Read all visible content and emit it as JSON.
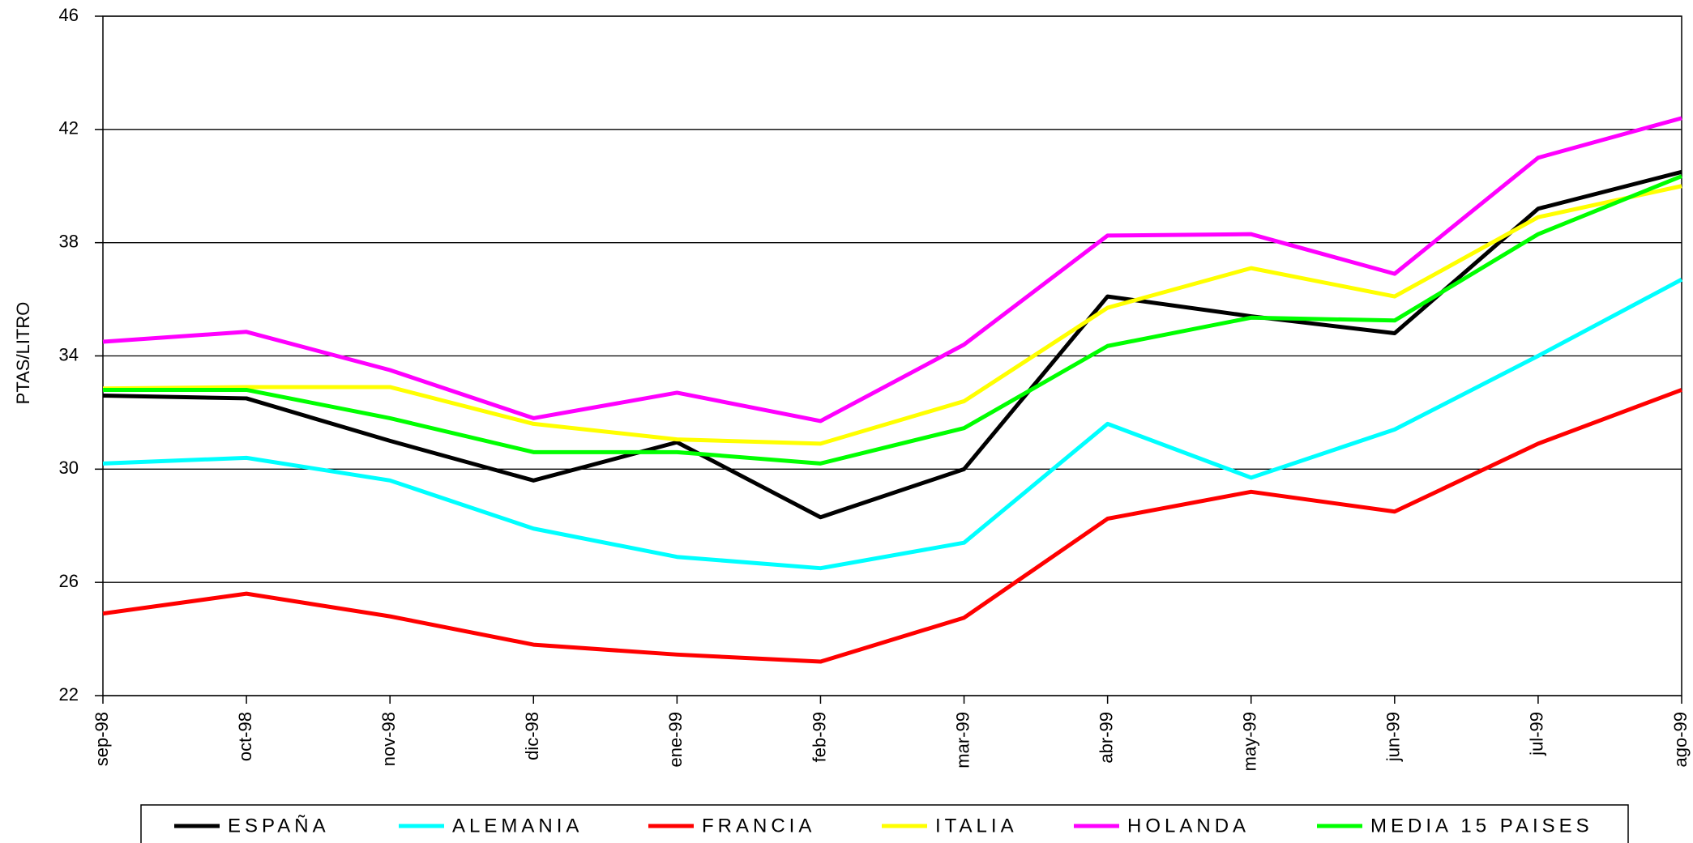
{
  "chart_data": {
    "type": "line",
    "y_label": "PTAS/LITRO",
    "categories": [
      "sep-98",
      "oct-98",
      "nov-98",
      "dic-98",
      "ene-99",
      "feb-99",
      "mar-99",
      "abr-99",
      "may-99",
      "jun-99",
      "jul-99",
      "ago-99"
    ],
    "series": [
      {
        "name": "ESPAÑA",
        "color": "#000000",
        "values": [
          32.6,
          32.5,
          31.0,
          29.6,
          30.95,
          28.3,
          30.0,
          36.1,
          35.4,
          34.8,
          39.2,
          40.5
        ]
      },
      {
        "name": "ALEMANIA",
        "color": "#00ffff",
        "values": [
          30.2,
          30.4,
          29.6,
          27.9,
          26.9,
          26.5,
          27.4,
          31.6,
          29.7,
          31.4,
          34.0,
          36.7
        ]
      },
      {
        "name": "FRANCIA",
        "color": "#ff0000",
        "values": [
          24.9,
          25.6,
          24.8,
          23.8,
          23.45,
          23.2,
          24.75,
          28.25,
          29.2,
          28.5,
          30.9,
          32.8
        ]
      },
      {
        "name": "ITALIA",
        "color": "#ffff00",
        "values": [
          32.85,
          32.9,
          32.9,
          31.6,
          31.05,
          30.9,
          32.4,
          35.7,
          37.1,
          36.1,
          38.9,
          40.0
        ]
      },
      {
        "name": "HOLANDA",
        "color": "#ff00ff",
        "values": [
          34.5,
          34.85,
          33.5,
          31.8,
          32.7,
          31.7,
          34.4,
          38.25,
          38.3,
          36.9,
          41.0,
          42.4
        ]
      },
      {
        "name": "MEDIA 15 PAISES",
        "color": "#00ff00",
        "values": [
          32.8,
          32.8,
          31.8,
          30.6,
          30.6,
          30.2,
          31.45,
          34.35,
          35.35,
          35.25,
          38.3,
          40.35
        ]
      }
    ],
    "ylim": [
      22,
      46
    ],
    "yticks": [
      22,
      26,
      30,
      34,
      38,
      42,
      46
    ],
    "grid": true
  }
}
